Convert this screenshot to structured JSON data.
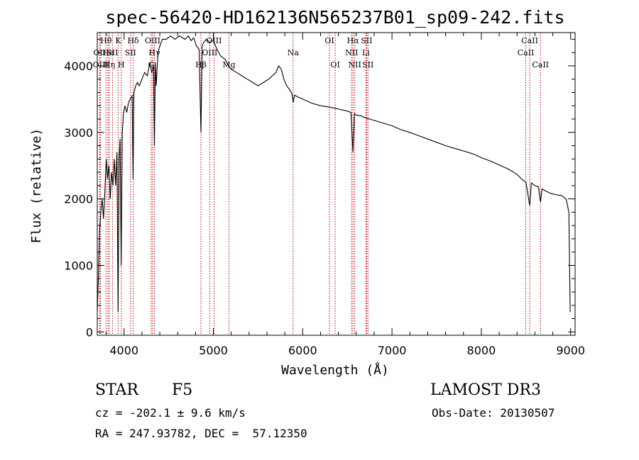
{
  "chart_data": {
    "type": "line",
    "title": "spec-56420-HD162136N565237B01_sp09-242.fits",
    "xlabel": "Wavelength (Å)",
    "ylabel": "Flux (relative)",
    "xlim": [
      3700,
      9050
    ],
    "ylim": [
      -50,
      4500
    ],
    "x_ticks": [
      4000,
      5000,
      6000,
      7000,
      8000,
      9000
    ],
    "y_ticks": [
      0,
      1000,
      2000,
      3000,
      4000
    ],
    "series": [
      {
        "name": "flux",
        "color": "#000000",
        "x": [
          3700,
          3712,
          3725,
          3740,
          3755,
          3770,
          3785,
          3800,
          3815,
          3830,
          3845,
          3860,
          3875,
          3890,
          3905,
          3920,
          3933,
          3945,
          3955,
          3968,
          3980,
          3995,
          4010,
          4030,
          4050,
          4070,
          4090,
          4101,
          4110,
          4130,
          4150,
          4170,
          4200,
          4230,
          4260,
          4290,
          4310,
          4330,
          4340,
          4350,
          4360,
          4380,
          4400,
          4430,
          4470,
          4520,
          4570,
          4620,
          4680,
          4720,
          4750,
          4780,
          4810,
          4840,
          4861,
          4875,
          4890,
          4920,
          4960,
          5000,
          5040,
          5080,
          5130,
          5170,
          5200,
          5260,
          5320,
          5380,
          5440,
          5500,
          5560,
          5620,
          5660,
          5700,
          5730,
          5760,
          5790,
          5820,
          5850,
          5880,
          5893,
          5910,
          5950,
          6000,
          6100,
          6200,
          6300,
          6400,
          6500,
          6540,
          6563,
          6580,
          6600,
          6650,
          6700,
          6800,
          6900,
          7000,
          7100,
          7200,
          7300,
          7400,
          7500,
          7600,
          7700,
          7800,
          7900,
          8000,
          8100,
          8200,
          8300,
          8400,
          8450,
          8500,
          8542,
          8560,
          8600,
          8640,
          8662,
          8680,
          8720,
          8780,
          8850,
          8900,
          8950,
          8980,
          8995
        ],
        "values": [
          300,
          800,
          1500,
          1800,
          2000,
          1700,
          2100,
          2600,
          2300,
          2500,
          2000,
          2400,
          2200,
          2600,
          2200,
          2700,
          300,
          2600,
          2900,
          1000,
          3000,
          3300,
          3400,
          3300,
          3450,
          3500,
          3550,
          2300,
          3600,
          3700,
          3750,
          3700,
          3800,
          3900,
          3850,
          4050,
          3900,
          4000,
          2800,
          4050,
          3700,
          4200,
          4300,
          4400,
          4400,
          4450,
          4400,
          4450,
          4400,
          4450,
          4380,
          4420,
          4300,
          4250,
          3000,
          4300,
          4350,
          4400,
          4350,
          4380,
          4250,
          4150,
          4100,
          4000,
          3950,
          3900,
          3850,
          3800,
          3750,
          3700,
          3750,
          3800,
          3850,
          3900,
          4000,
          3950,
          3800,
          3700,
          3650,
          3580,
          3450,
          3560,
          3530,
          3500,
          3440,
          3400,
          3380,
          3350,
          3320,
          3300,
          2700,
          3280,
          3260,
          3250,
          3220,
          3180,
          3140,
          3100,
          3040,
          3000,
          2950,
          2900,
          2850,
          2800,
          2760,
          2720,
          2680,
          2620,
          2570,
          2510,
          2450,
          2370,
          2300,
          2250,
          1900,
          2240,
          2200,
          2180,
          1950,
          2150,
          2120,
          2080,
          2060,
          2050,
          2000,
          1800,
          300
        ]
      }
    ],
    "lines": [
      {
        "label": "OII",
        "x": 3727,
        "tier": 2
      },
      {
        "label": "OIII",
        "x": 3737,
        "tier": 3
      },
      {
        "label": "Hθ",
        "x": 3798,
        "tier": 1
      },
      {
        "label": "He",
        "x": 3820,
        "tier": 2
      },
      {
        "label": "Hη",
        "x": 3835,
        "tier": 3
      },
      {
        "label": "SII",
        "x": 3870,
        "tier": 2
      },
      {
        "label": "K",
        "x": 3934,
        "tier": 1
      },
      {
        "label": "H",
        "x": 3969,
        "tier": 3
      },
      {
        "label": "SII",
        "x": 4072,
        "tier": 2
      },
      {
        "label": "Hδ",
        "x": 4102,
        "tier": 1
      },
      {
        "label": "OIII",
        "x": 4320,
        "tier": 1
      },
      {
        "label": "G",
        "x": 4304,
        "tier": 3
      },
      {
        "label": "Hγ",
        "x": 4340,
        "tier": 2
      },
      {
        "label": "Hβ",
        "x": 4861,
        "tier": 3
      },
      {
        "label": "OIII",
        "x": 4959,
        "tier": 2
      },
      {
        "label": "OIII",
        "x": 5007,
        "tier": 1
      },
      {
        "label": "Mg",
        "x": 5175,
        "tier": 3
      },
      {
        "label": "Na",
        "x": 5893,
        "tier": 2
      },
      {
        "label": "OI",
        "x": 6300,
        "tier": 1
      },
      {
        "label": "OI",
        "x": 6364,
        "tier": 3
      },
      {
        "label": "NII",
        "x": 6548,
        "tier": 2
      },
      {
        "label": "Hα",
        "x": 6563,
        "tier": 1
      },
      {
        "label": "NII",
        "x": 6583,
        "tier": 3
      },
      {
        "label": "Li",
        "x": 6708,
        "tier": 2
      },
      {
        "label": "SII",
        "x": 6716,
        "tier": 1
      },
      {
        "label": "SII",
        "x": 6731,
        "tier": 3
      },
      {
        "label": "CaII",
        "x": 8498,
        "tier": 2
      },
      {
        "label": "CaII",
        "x": 8542,
        "tier": 1
      },
      {
        "label": "CaII",
        "x": 8662,
        "tier": 3
      }
    ]
  },
  "info": {
    "object_class": "STAR",
    "subclass": "F5",
    "survey": "LAMOST DR3",
    "cz": "cz = -202.1 ± 9.6 km/s",
    "obs_date": "Obs-Date: 20130507",
    "coords": "RA = 247.93782, DEC =  57.12350"
  }
}
